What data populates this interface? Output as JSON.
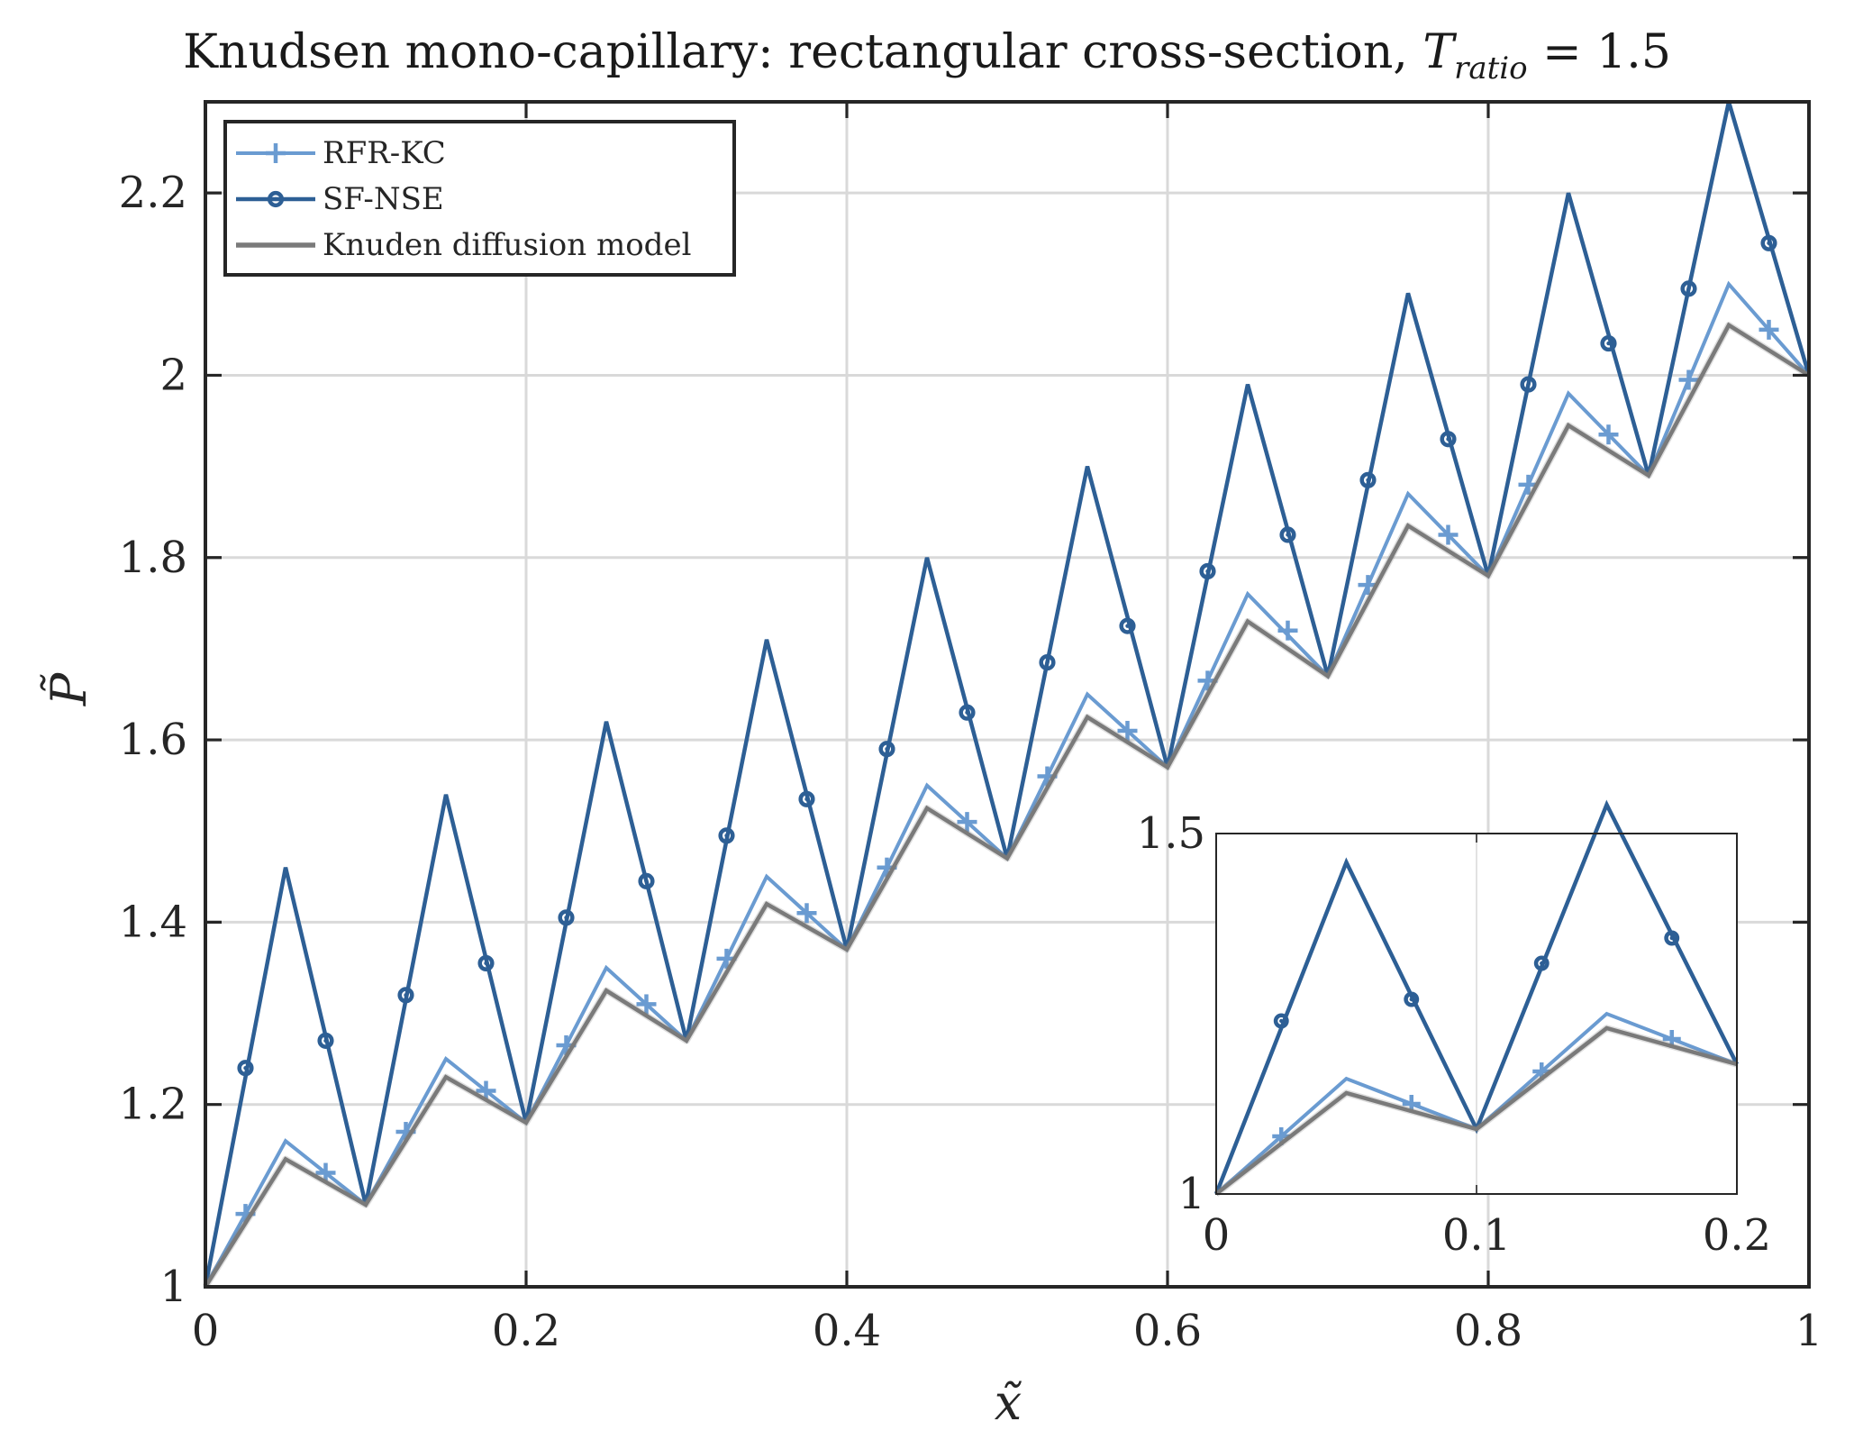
{
  "title": {
    "prefix": "Knudsen mono-capillary: rectangular cross-section, ",
    "var": "T",
    "sub": "ratio",
    "suffix": " = 1.5"
  },
  "colors": {
    "rfr_kc": "#6a9bd1",
    "sf_nse": "#2d5f95",
    "knudsen": "#7a7a7a",
    "grid": "#d9d9d9",
    "axis": "#262626"
  },
  "chart_data": [
    {
      "type": "line",
      "title": "Knudsen mono-capillary: rectangular cross-section, T_ratio = 1.5",
      "xlabel": "x̃",
      "ylabel": "P̃",
      "xlim": [
        0,
        1
      ],
      "ylim": [
        1,
        2.3
      ],
      "grid": true,
      "legend_position": "top-left",
      "x_ticks": [
        0,
        0.2,
        0.4,
        0.6,
        0.8,
        1
      ],
      "x_tick_labels": [
        "0",
        "0.2",
        "0.4",
        "0.6",
        "0.8",
        "1"
      ],
      "y_ticks": [
        1,
        1.2,
        1.4,
        1.6,
        1.8,
        2,
        2.2
      ],
      "y_tick_labels": [
        "1",
        "1.2",
        "1.4",
        "1.6",
        "1.8",
        "2",
        "2.2"
      ],
      "series": [
        {
          "name": "RFR-KC",
          "marker": "plus",
          "x": [
            0,
            0.05,
            0.1,
            0.15,
            0.2,
            0.25,
            0.3,
            0.35,
            0.4,
            0.45,
            0.5,
            0.55,
            0.6,
            0.65,
            0.7,
            0.75,
            0.8,
            0.85,
            0.9,
            0.95,
            1.0
          ],
          "values": [
            1.0,
            1.16,
            1.09,
            1.25,
            1.18,
            1.35,
            1.27,
            1.45,
            1.37,
            1.55,
            1.47,
            1.65,
            1.57,
            1.76,
            1.67,
            1.87,
            1.78,
            1.98,
            1.89,
            2.1,
            2.0
          ],
          "markers_x": [
            0.025,
            0.075,
            0.125,
            0.175,
            0.225,
            0.275,
            0.325,
            0.375,
            0.425,
            0.475,
            0.525,
            0.575,
            0.625,
            0.675,
            0.725,
            0.775,
            0.825,
            0.875,
            0.925,
            0.975
          ],
          "markers_y": [
            1.08,
            1.125,
            1.17,
            1.215,
            1.265,
            1.31,
            1.36,
            1.41,
            1.46,
            1.51,
            1.56,
            1.61,
            1.665,
            1.72,
            1.77,
            1.825,
            1.88,
            1.935,
            1.995,
            2.05
          ]
        },
        {
          "name": "SF-NSE",
          "marker": "circle",
          "x": [
            0,
            0.05,
            0.1,
            0.15,
            0.2,
            0.25,
            0.3,
            0.35,
            0.4,
            0.45,
            0.5,
            0.55,
            0.6,
            0.65,
            0.7,
            0.75,
            0.8,
            0.85,
            0.9,
            0.95,
            1.0
          ],
          "values": [
            1.0,
            1.46,
            1.09,
            1.54,
            1.18,
            1.62,
            1.27,
            1.71,
            1.37,
            1.8,
            1.47,
            1.9,
            1.57,
            1.99,
            1.67,
            2.09,
            1.78,
            2.2,
            1.89,
            2.3,
            2.0
          ],
          "markers_x": [
            0.025,
            0.075,
            0.125,
            0.175,
            0.225,
            0.275,
            0.325,
            0.375,
            0.425,
            0.475,
            0.525,
            0.575,
            0.625,
            0.675,
            0.725,
            0.775,
            0.825,
            0.875,
            0.925,
            0.975
          ],
          "markers_y": [
            1.24,
            1.27,
            1.32,
            1.355,
            1.405,
            1.445,
            1.495,
            1.535,
            1.59,
            1.63,
            1.685,
            1.725,
            1.785,
            1.825,
            1.885,
            1.93,
            1.99,
            2.035,
            2.095,
            2.145
          ]
        },
        {
          "name": "Knuden diffusion model",
          "marker": "none",
          "x": [
            0,
            0.05,
            0.1,
            0.15,
            0.2,
            0.25,
            0.3,
            0.35,
            0.4,
            0.45,
            0.5,
            0.55,
            0.6,
            0.65,
            0.7,
            0.75,
            0.8,
            0.85,
            0.9,
            0.95,
            1.0
          ],
          "values": [
            1.0,
            1.14,
            1.09,
            1.23,
            1.18,
            1.325,
            1.27,
            1.42,
            1.37,
            1.525,
            1.47,
            1.625,
            1.57,
            1.73,
            1.67,
            1.835,
            1.78,
            1.945,
            1.89,
            2.055,
            2.0
          ]
        }
      ]
    },
    {
      "type": "line",
      "role": "inset",
      "xlim": [
        0,
        0.2
      ],
      "ylim": [
        1,
        1.5
      ],
      "grid": true,
      "x_ticks": [
        0,
        0.1,
        0.2
      ],
      "x_tick_labels": [
        "0",
        "0.1",
        "0.2"
      ],
      "y_ticks": [
        1,
        1.5
      ],
      "y_tick_labels": [
        "1",
        "1.5"
      ],
      "series": [
        {
          "name": "RFR-KC",
          "marker": "plus",
          "x": [
            0,
            0.05,
            0.1,
            0.15,
            0.2
          ],
          "values": [
            1.0,
            1.16,
            1.09,
            1.25,
            1.18
          ],
          "markers_x": [
            0.025,
            0.075,
            0.125,
            0.175
          ],
          "markers_y": [
            1.08,
            1.125,
            1.17,
            1.215
          ]
        },
        {
          "name": "SF-NSE",
          "marker": "circle",
          "x": [
            0,
            0.05,
            0.1,
            0.15,
            0.2
          ],
          "values": [
            1.0,
            1.46,
            1.09,
            1.54,
            1.18
          ],
          "markers_x": [
            0.025,
            0.075,
            0.125,
            0.175
          ],
          "markers_y": [
            1.24,
            1.27,
            1.32,
            1.355
          ]
        },
        {
          "name": "Knuden diffusion model",
          "marker": "none",
          "x": [
            0,
            0.05,
            0.1,
            0.15,
            0.2
          ],
          "values": [
            1.0,
            1.14,
            1.09,
            1.23,
            1.18
          ]
        }
      ]
    }
  ]
}
